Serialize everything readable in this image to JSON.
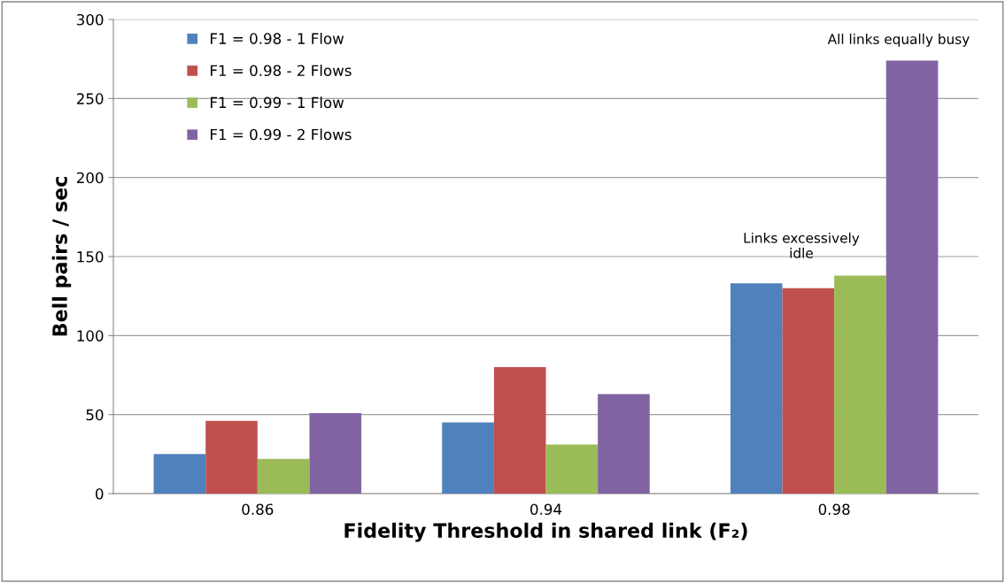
{
  "chart_data": {
    "type": "bar",
    "categories": [
      "0.86",
      "0.94",
      "0.98"
    ],
    "series": [
      {
        "name": "F1 = 0.98 - 1 Flow",
        "color": "#4f81bd",
        "values": [
          25,
          45,
          133
        ]
      },
      {
        "name": "F1 = 0.98 - 2 Flows",
        "color": "#c0504d",
        "values": [
          46,
          80,
          130
        ]
      },
      {
        "name": "F1 = 0.99 - 1 Flow",
        "color": "#9bbb59",
        "values": [
          22,
          31,
          138
        ]
      },
      {
        "name": "F1 = 0.99 - 2 Flows",
        "color": "#8064a2",
        "values": [
          51,
          63,
          274
        ]
      }
    ],
    "xlabel": "Fidelity Threshold in shared link (F₂)",
    "ylabel": "Bell pairs / sec",
    "ylim": [
      0,
      300
    ],
    "yticks": [
      0,
      50,
      100,
      150,
      200,
      250,
      300
    ],
    "grid": "y",
    "legend": "top left",
    "annotations": [
      "All links equally busy",
      {
        "text": "Links excessively\nidle",
        "x": "0.98",
        "y": 138
      }
    ]
  }
}
